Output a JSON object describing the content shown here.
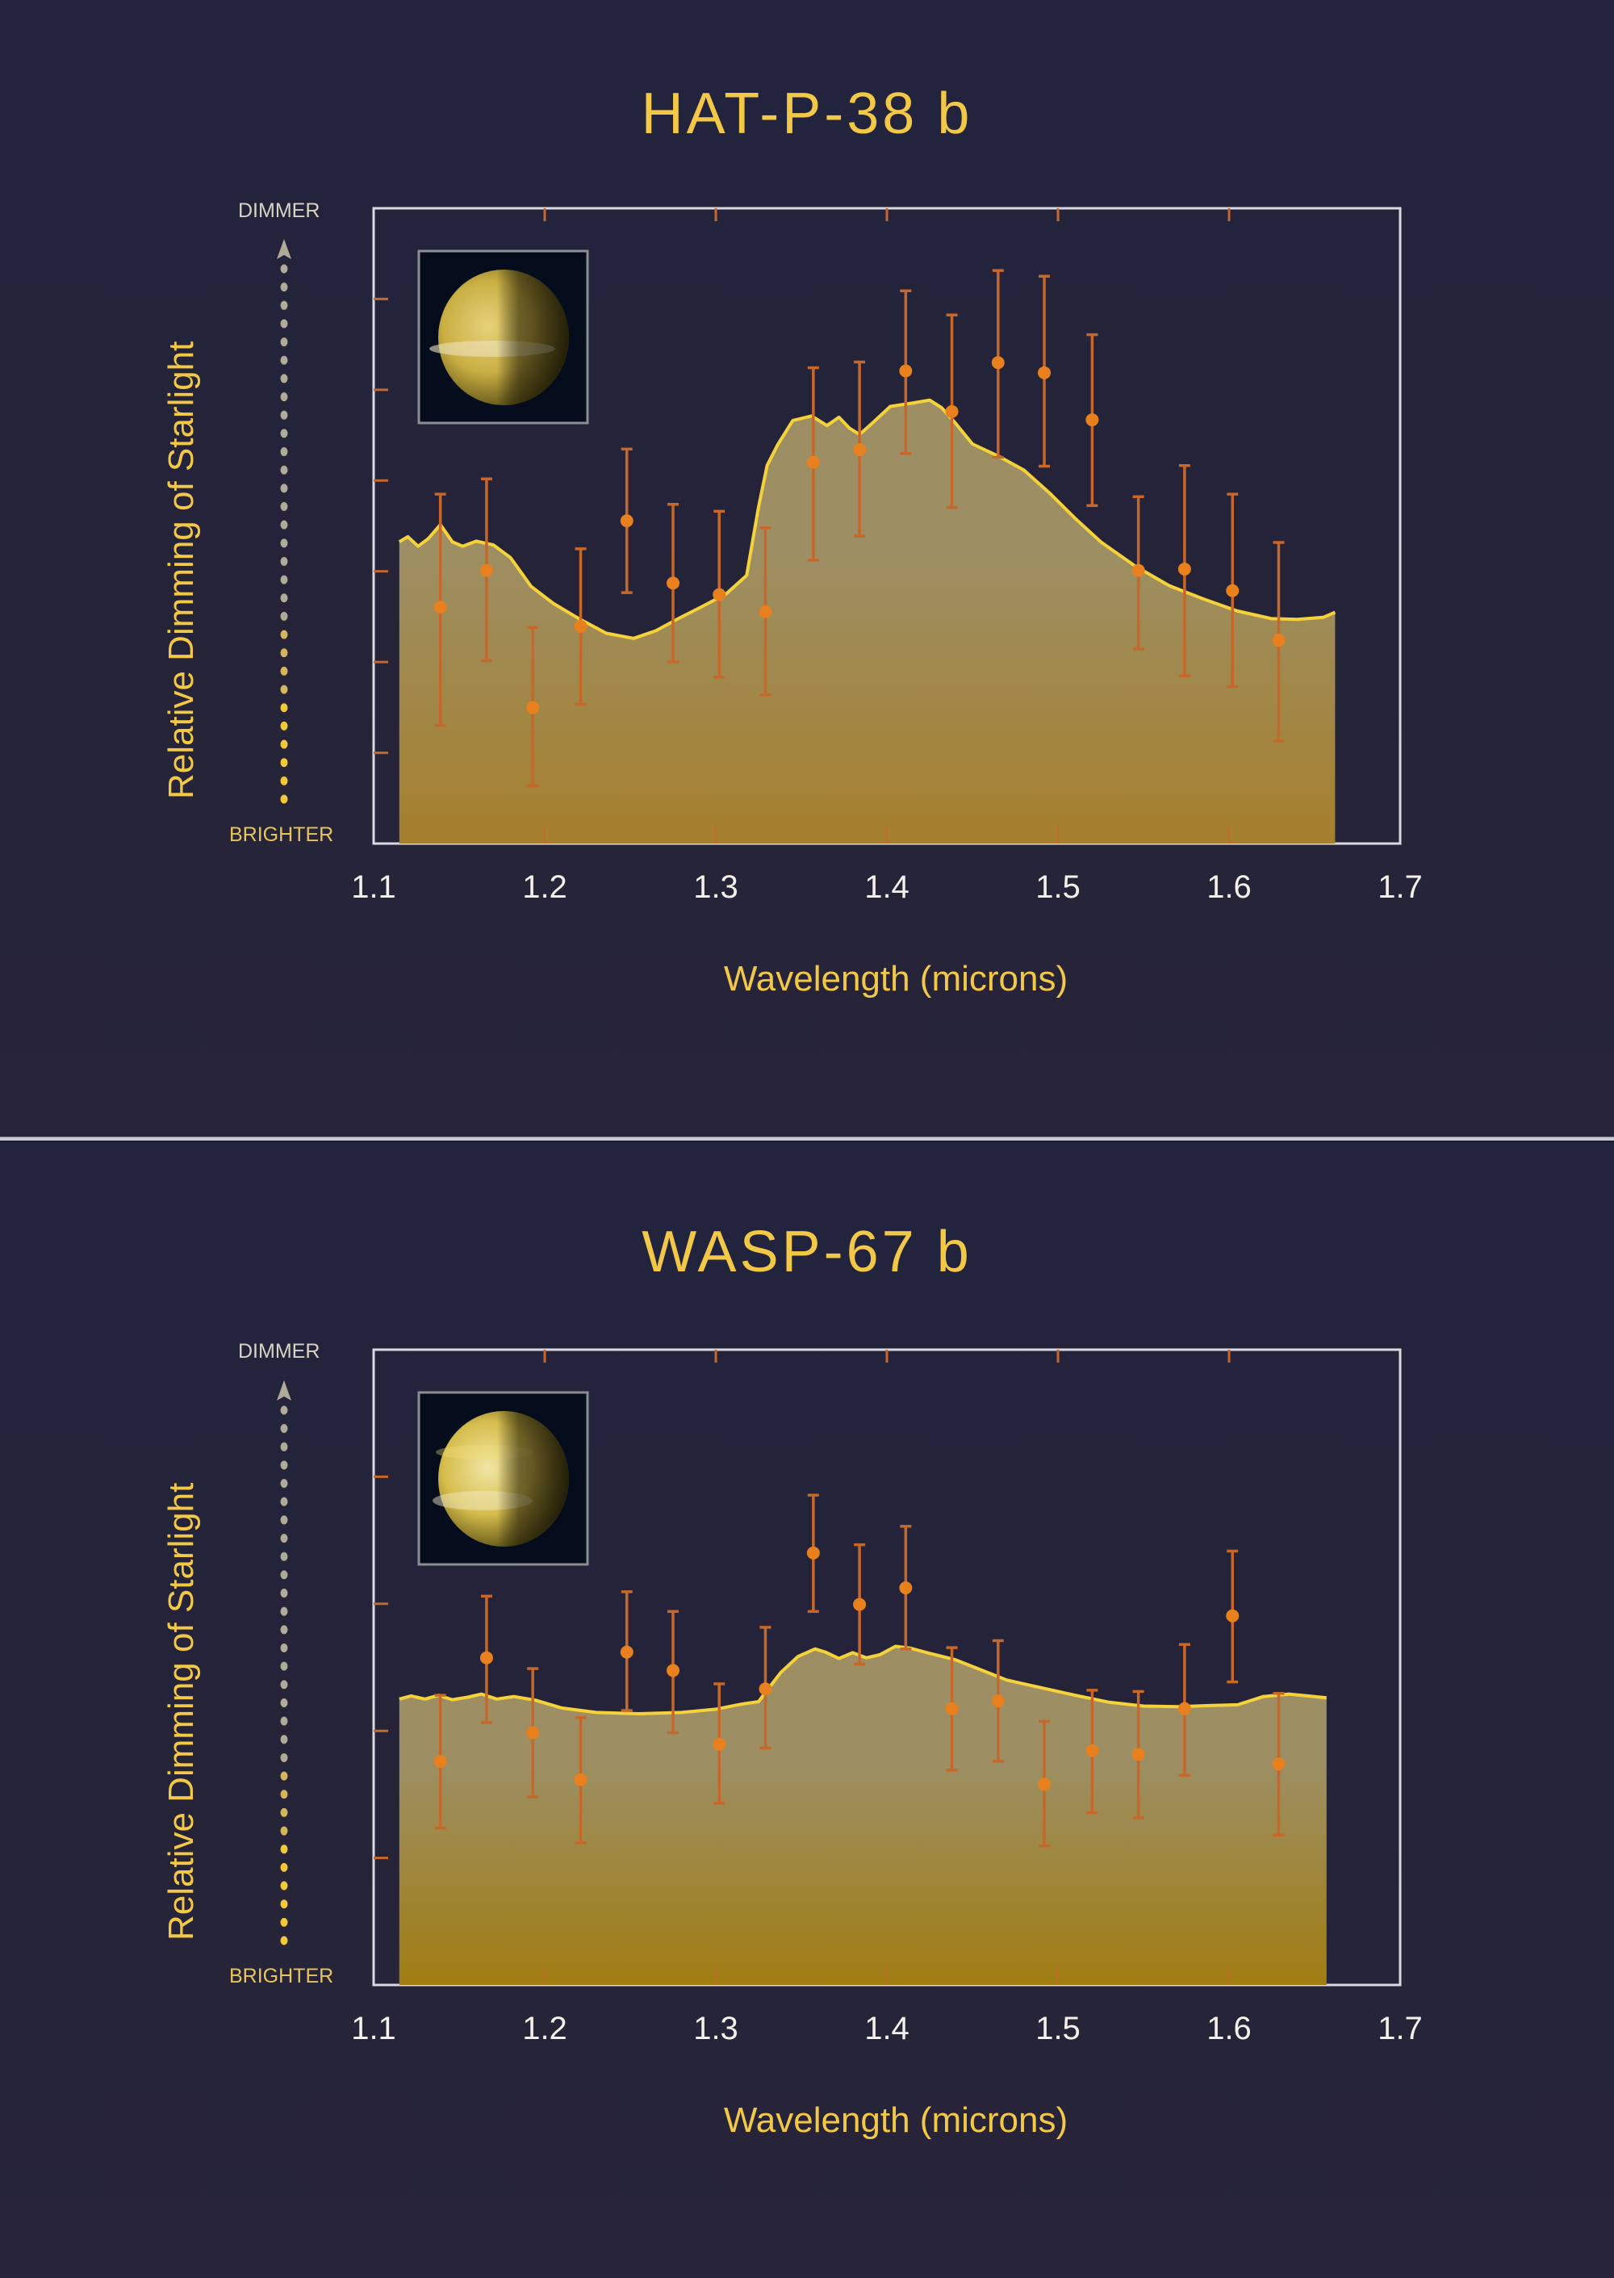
{
  "chart_data": [
    {
      "type": "line",
      "title": "HAT-P-38 b",
      "xlabel": "Wavelength (microns)",
      "ylabel": "Relative Dimming of Starlight",
      "y_top_label": "DIMMER",
      "y_bottom_label": "BRIGHTER",
      "x_ticks": [
        "1.1",
        "1.2",
        "1.3",
        "1.4",
        "1.5",
        "1.6",
        "1.7"
      ],
      "xlim": [
        1.1,
        1.7
      ],
      "ylim": [
        0,
        100
      ],
      "y_units": "relative (0 = bottom of plot, 100 = top), no numeric tick labels",
      "grid": false,
      "legend": null,
      "series": [
        {
          "name": "Model spectrum (filled area)",
          "kind": "area",
          "x": [
            1.115,
            1.12,
            1.126,
            1.132,
            1.139,
            1.146,
            1.152,
            1.16,
            1.17,
            1.18,
            1.192,
            1.205,
            1.22,
            1.236,
            1.252,
            1.265,
            1.278,
            1.292,
            1.306,
            1.318,
            1.325,
            1.33,
            1.336,
            1.345,
            1.356,
            1.365,
            1.372,
            1.378,
            1.384,
            1.392,
            1.402,
            1.414,
            1.425,
            1.432,
            1.44,
            1.45,
            1.465,
            1.48,
            1.495,
            1.51,
            1.525,
            1.545,
            1.565,
            1.585,
            1.605,
            1.625,
            1.64,
            1.655,
            1.662
          ],
          "y": [
            47.5,
            48.3,
            46.8,
            48.0,
            50.2,
            47.5,
            46.8,
            47.6,
            47.0,
            45.0,
            40.5,
            37.8,
            35.4,
            33.1,
            32.3,
            33.5,
            35.4,
            37.3,
            39.3,
            42.2,
            53.0,
            59.5,
            62.7,
            66.6,
            67.3,
            65.8,
            67.1,
            65.4,
            64.4,
            66.3,
            68.8,
            69.3,
            69.8,
            68.6,
            66.2,
            62.9,
            61.0,
            58.8,
            55.2,
            51.2,
            47.5,
            43.7,
            40.6,
            38.5,
            36.6,
            35.4,
            35.3,
            35.6,
            36.4
          ]
        },
        {
          "name": "Observations",
          "kind": "scatter_errorbar",
          "x": [
            1.139,
            1.166,
            1.193,
            1.221,
            1.248,
            1.275,
            1.302,
            1.329,
            1.357,
            1.384,
            1.411,
            1.438,
            1.465,
            1.492,
            1.52,
            1.547,
            1.574,
            1.602,
            1.629
          ],
          "y": [
            37.2,
            43.0,
            21.4,
            34.2,
            50.8,
            41.0,
            39.2,
            36.5,
            60.0,
            62.0,
            74.4,
            68.0,
            75.7,
            74.1,
            66.7,
            43.0,
            43.2,
            39.8,
            32.0
          ],
          "y_err_low": [
            18.6,
            14.2,
            12.3,
            12.3,
            11.3,
            12.4,
            13.0,
            13.1,
            15.4,
            13.6,
            13.0,
            15.1,
            14.9,
            14.7,
            13.5,
            12.4,
            16.8,
            15.1,
            15.9
          ],
          "y_err_high": [
            17.8,
            14.4,
            12.6,
            12.2,
            11.3,
            12.4,
            13.1,
            13.2,
            14.9,
            13.8,
            12.6,
            15.2,
            14.5,
            15.2,
            13.4,
            11.6,
            16.3,
            15.2,
            15.4
          ]
        }
      ]
    },
    {
      "type": "line",
      "title": "WASP-67 b",
      "xlabel": "Wavelength (microns)",
      "ylabel": "Relative Dimming of Starlight",
      "y_top_label": "DIMMER",
      "y_bottom_label": "BRIGHTER",
      "x_ticks": [
        "1.1",
        "1.2",
        "1.3",
        "1.4",
        "1.5",
        "1.6",
        "1.7"
      ],
      "xlim": [
        1.1,
        1.7
      ],
      "ylim": [
        0,
        100
      ],
      "y_units": "relative (0 = bottom of plot, 100 = top), no numeric tick labels",
      "grid": false,
      "legend": null,
      "series": [
        {
          "name": "Model spectrum (filled area)",
          "kind": "area",
          "x": [
            1.115,
            1.122,
            1.13,
            1.138,
            1.146,
            1.155,
            1.163,
            1.172,
            1.182,
            1.195,
            1.21,
            1.23,
            1.255,
            1.28,
            1.3,
            1.315,
            1.325,
            1.33,
            1.338,
            1.348,
            1.358,
            1.364,
            1.372,
            1.38,
            1.388,
            1.396,
            1.405,
            1.414,
            1.425,
            1.44,
            1.455,
            1.47,
            1.49,
            1.51,
            1.53,
            1.55,
            1.57,
            1.59,
            1.605,
            1.62,
            1.635,
            1.65,
            1.657
          ],
          "y": [
            45.0,
            45.5,
            45.0,
            45.6,
            44.9,
            45.3,
            45.8,
            45.0,
            45.4,
            44.8,
            43.6,
            42.9,
            42.7,
            42.9,
            43.4,
            44.2,
            44.6,
            46.4,
            49.2,
            51.7,
            52.9,
            52.4,
            51.4,
            52.3,
            51.5,
            52.0,
            53.3,
            53.0,
            52.2,
            51.2,
            49.6,
            48.0,
            46.8,
            45.6,
            44.5,
            43.9,
            43.8,
            44.0,
            44.1,
            45.4,
            45.8,
            45.4,
            45.2
          ]
        },
        {
          "name": "Observations",
          "kind": "scatter_errorbar",
          "x": [
            1.139,
            1.166,
            1.193,
            1.221,
            1.248,
            1.275,
            1.302,
            1.329,
            1.357,
            1.384,
            1.411,
            1.438,
            1.465,
            1.492,
            1.52,
            1.547,
            1.574,
            1.602,
            1.629
          ],
          "y": [
            35.2,
            51.5,
            39.7,
            32.3,
            52.4,
            49.5,
            37.9,
            46.6,
            68.0,
            59.9,
            62.5,
            43.5,
            44.7,
            31.6,
            36.9,
            36.3,
            43.5,
            58.1,
            34.8
          ],
          "y_err_low": [
            10.5,
            10.2,
            10.1,
            9.9,
            9.2,
            9.8,
            9.3,
            9.3,
            9.2,
            9.4,
            9.6,
            9.7,
            9.5,
            9.7,
            9.8,
            10.0,
            10.5,
            10.4,
            11.2
          ],
          "y_err_high": [
            10.4,
            9.7,
            10.1,
            9.8,
            9.5,
            9.3,
            9.5,
            9.7,
            9.1,
            9.4,
            9.7,
            9.6,
            9.5,
            9.9,
            9.5,
            9.9,
            10.1,
            10.2,
            11.1
          ]
        }
      ]
    }
  ],
  "panels": [
    {
      "title": "HAT-P-38 b",
      "ylabel": "Relative Dimming of Starlight",
      "dimmer_label": "DIMMER",
      "brighter_label": "BRIGHTER",
      "xlabel": "Wavelength (microns)",
      "x_ticks": [
        "1.1",
        "1.2",
        "1.3",
        "1.4",
        "1.5",
        "1.6",
        "1.7"
      ],
      "planet_image": "planet-illustration-banded-yellow"
    },
    {
      "title": "WASP-67 b",
      "ylabel": "Relative Dimming of Starlight",
      "dimmer_label": "DIMMER",
      "brighter_label": "BRIGHTER",
      "xlabel": "Wavelength (microns)",
      "x_ticks": [
        "1.1",
        "1.2",
        "1.3",
        "1.4",
        "1.5",
        "1.6",
        "1.7"
      ],
      "planet_image": "planet-illustration-cloudy-yellow"
    }
  ],
  "colors": {
    "background": "#22233d",
    "title_text": "#f3c847",
    "tick_text": "#f4f1ea",
    "frame": "#d9d9e2",
    "model_line": "#f6d23a",
    "area_top": "#9d8f63",
    "area_bottom_1": "#a67f2c",
    "area_bottom_2": "#a07d12",
    "points": "#e8801e",
    "error_bars": "#c7682a",
    "ticks": "#c7682a",
    "dimmer_arrow": "#b0aa98",
    "brighter_dots": "#f0c83a"
  }
}
